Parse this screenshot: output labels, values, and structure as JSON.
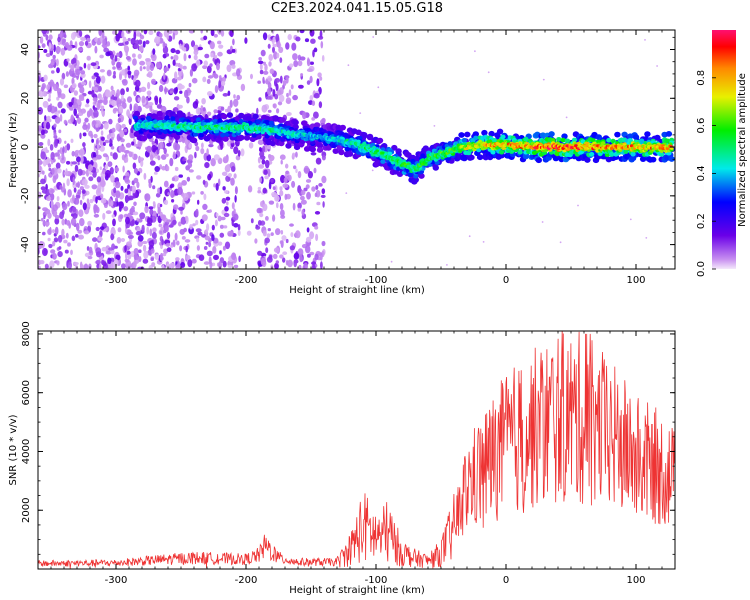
{
  "title": "C2E3.2024.041.15.05.G18",
  "chart_data": [
    {
      "type": "heatmap",
      "title": "C2E3.2024.041.15.05.G18",
      "xlabel": "Height of straight line (km)",
      "ylabel": "Frequency (Hz)",
      "xlim": [
        -360,
        130
      ],
      "ylim": [
        -50,
        48
      ],
      "xticks": [
        -300,
        -200,
        -100,
        0,
        100
      ],
      "yticks": [
        -40,
        -20,
        0,
        20,
        40
      ],
      "colorbar": {
        "label": "Normalized spectral amplitude",
        "range": [
          0.0,
          1.0
        ],
        "ticks": [
          0.0,
          0.2,
          0.4,
          0.6,
          0.8
        ]
      },
      "ridge_frequency": {
        "x": [
          -280,
          -260,
          -240,
          -220,
          -200,
          -180,
          -160,
          -140,
          -120,
          -100,
          -90,
          -80,
          -70,
          -60,
          -50,
          -40,
          -30,
          -20,
          -10,
          0,
          20,
          60,
          100,
          130
        ],
        "y": [
          9,
          9,
          8,
          8,
          8,
          7,
          5,
          4,
          2,
          -2,
          -4,
          -7,
          -9,
          -5,
          -3,
          -1,
          0,
          1,
          1,
          1,
          0,
          0,
          0,
          0
        ]
      },
      "ridge_amplitude": {
        "x": [
          -280,
          -250,
          -200,
          -170,
          -140,
          -110,
          -80,
          -60,
          -40,
          -20,
          0,
          30,
          60,
          100,
          130
        ],
        "y": [
          0.45,
          0.5,
          0.5,
          0.45,
          0.4,
          0.5,
          0.55,
          0.55,
          0.6,
          0.75,
          0.8,
          0.9,
          0.85,
          0.8,
          0.8
        ]
      },
      "noise_region_x": [
        -360,
        -140
      ]
    },
    {
      "type": "line",
      "xlabel": "Height of straight line (km)",
      "ylabel": "SNR (10 * v/v)",
      "xlim": [
        -360,
        130
      ],
      "ylim": [
        0,
        8100
      ],
      "xticks": [
        -300,
        -200,
        -100,
        0,
        100
      ],
      "yticks": [
        2000,
        4000,
        6000,
        8000
      ],
      "color": "#ee3333",
      "x": [
        -360,
        -300,
        -260,
        -240,
        -200,
        -190,
        -185,
        -175,
        -160,
        -130,
        -120,
        -110,
        -100,
        -90,
        -80,
        -70,
        -60,
        -50,
        -40,
        -30,
        -20,
        -10,
        0,
        20,
        40,
        60,
        80,
        100,
        120,
        130
      ],
      "y": [
        200,
        220,
        350,
        400,
        350,
        500,
        850,
        400,
        250,
        250,
        700,
        1600,
        1200,
        1300,
        600,
        400,
        300,
        600,
        1500,
        3000,
        3500,
        4000,
        4500,
        5000,
        5500,
        5400,
        4800,
        4000,
        3600,
        3200
      ]
    }
  ]
}
